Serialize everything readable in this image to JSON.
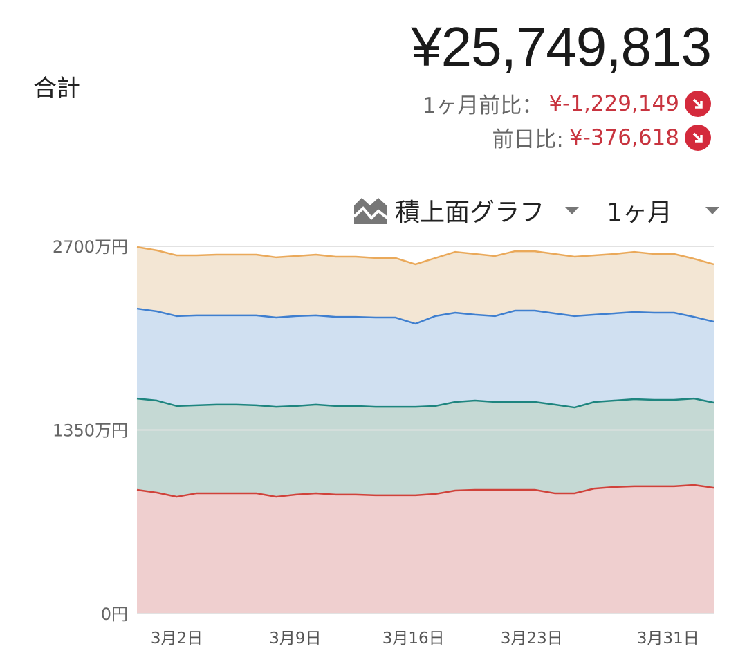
{
  "header": {
    "label": "合計",
    "total": "¥25,749,813",
    "month_compare_label": "1ヶ月前比：",
    "month_compare_value": "¥-1,229,149",
    "day_compare_label": "前日比:",
    "day_compare_value": "¥-376,618",
    "trend_icon": "arrow-down-right-icon"
  },
  "controls": {
    "chart_type": "積上面グラフ",
    "chart_type_icon": "area-chart-icon",
    "period": "1ヶ月"
  },
  "chart_data": {
    "type": "area",
    "stacked": true,
    "title": "",
    "xlabel": "",
    "ylabel": "",
    "y_unit": "万円",
    "ylim": [
      0,
      2700
    ],
    "y_ticks": [
      {
        "value": 0,
        "label": "0円"
      },
      {
        "value": 1350,
        "label": "1350万円"
      },
      {
        "value": 2700,
        "label": "2700万円"
      }
    ],
    "x_count": 30,
    "x_ticks": [
      {
        "index": 2,
        "label": "3月2日"
      },
      {
        "index": 7.96,
        "label": "3月9日"
      },
      {
        "index": 13.9,
        "label": "3月16日"
      },
      {
        "index": 19.85,
        "label": "3月23日"
      },
      {
        "index": 26.7,
        "label": "3月31日"
      }
    ],
    "grid": true,
    "series": [
      {
        "name": "series-red",
        "line": "#d0423a",
        "fill": "#efcfcf",
        "values": [
          910,
          890,
          859,
          885,
          885,
          885,
          885,
          859,
          875,
          885,
          875,
          875,
          870,
          870,
          870,
          880,
          905,
          910,
          910,
          910,
          910,
          885,
          885,
          920,
          931,
          936,
          936,
          936,
          946,
          925
        ]
      },
      {
        "name": "series-teal",
        "line": "#1e857f",
        "fill": "#c5d9d4",
        "values": [
          671,
          676,
          667,
          646,
          651,
          651,
          646,
          661,
          651,
          651,
          651,
          651,
          650,
          650,
          650,
          646,
          651,
          656,
          646,
          646,
          646,
          651,
          630,
          636,
          635,
          640,
          635,
          635,
          635,
          626
        ]
      },
      {
        "name": "series-blue",
        "line": "#3f7fcf",
        "fill": "#d0e0f1",
        "values": [
          661,
          656,
          661,
          661,
          656,
          656,
          661,
          656,
          661,
          656,
          655,
          655,
          656,
          656,
          611,
          661,
          656,
          631,
          631,
          671,
          671,
          671,
          672,
          641,
          641,
          641,
          641,
          641,
          600,
          595
        ]
      },
      {
        "name": "series-orange",
        "line": "#eaa95a",
        "fill": "#f3e6d4",
        "values": [
          453,
          448,
          447,
          442,
          447,
          447,
          447,
          443,
          442,
          447,
          443,
          443,
          438,
          438,
          437,
          427,
          447,
          447,
          442,
          437,
          437,
          437,
          437,
          437,
          437,
          442,
          432,
          432,
          428,
          422
        ]
      }
    ]
  }
}
